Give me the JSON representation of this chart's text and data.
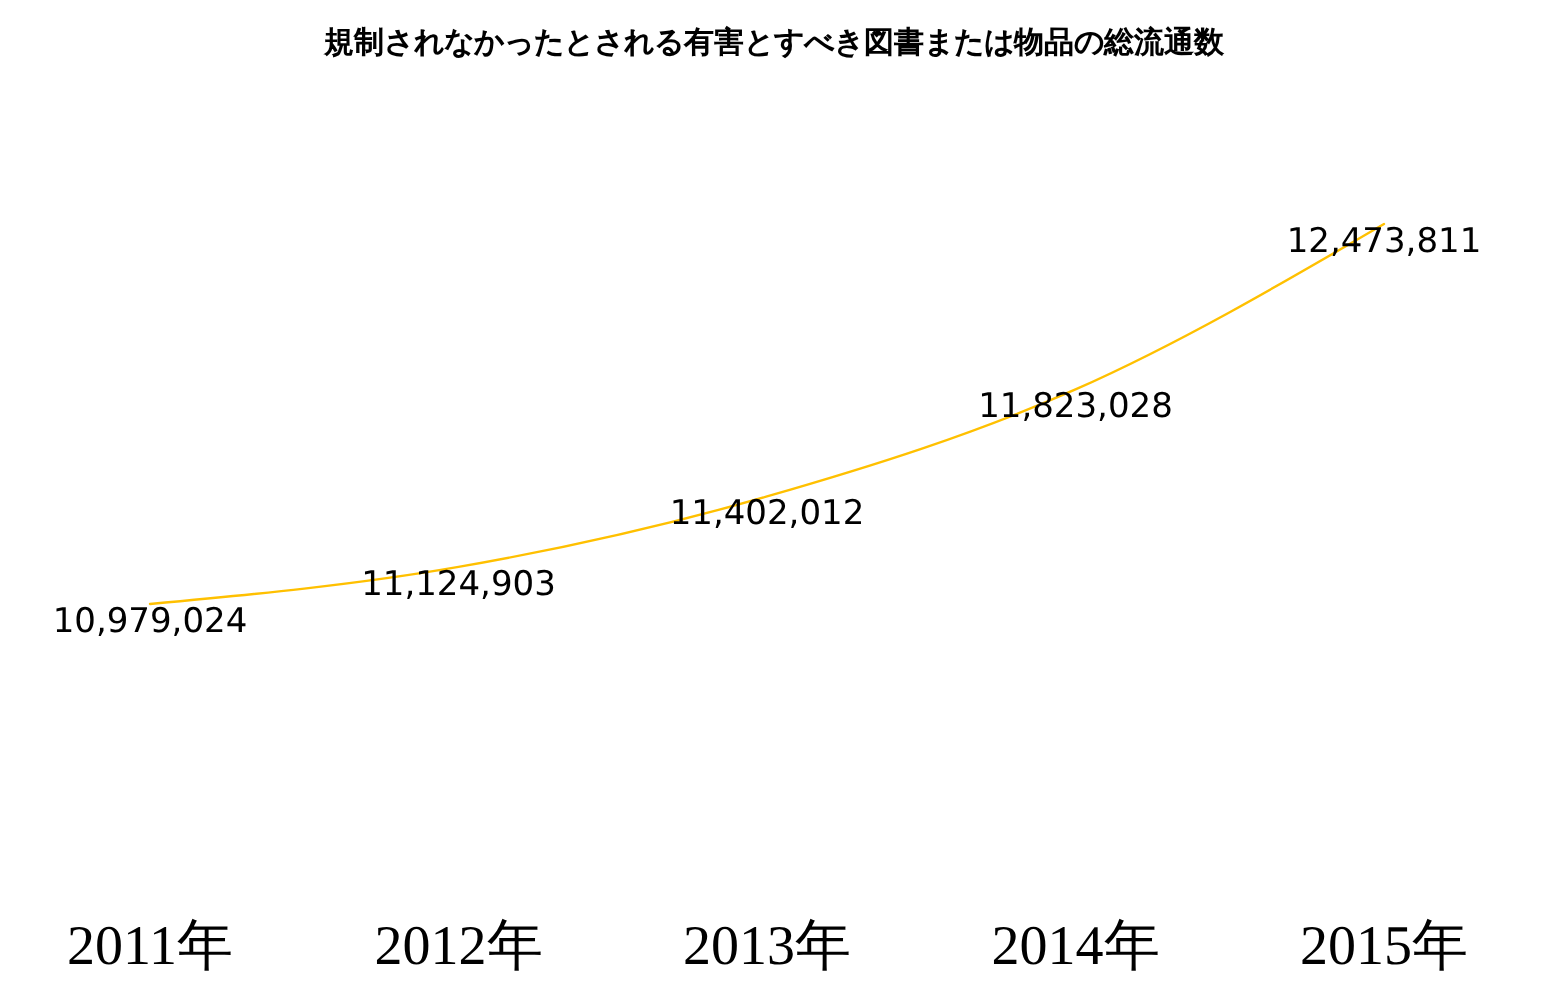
{
  "chart_data": {
    "type": "line",
    "title": "規制されなかったとされる有害とすべき図書または物品の総流通数",
    "categories": [
      "2011年",
      "2012年",
      "2013年",
      "2014年",
      "2015年"
    ],
    "series": [
      {
        "color": "#ffc000",
        "values": [
          10979024,
          11124903,
          11402012,
          11823028,
          12473811
        ],
        "value_labels": [
          "10,979,024",
          "11,124,903",
          "11,402,012",
          "11,823,028",
          "12,473,811"
        ]
      }
    ]
  }
}
